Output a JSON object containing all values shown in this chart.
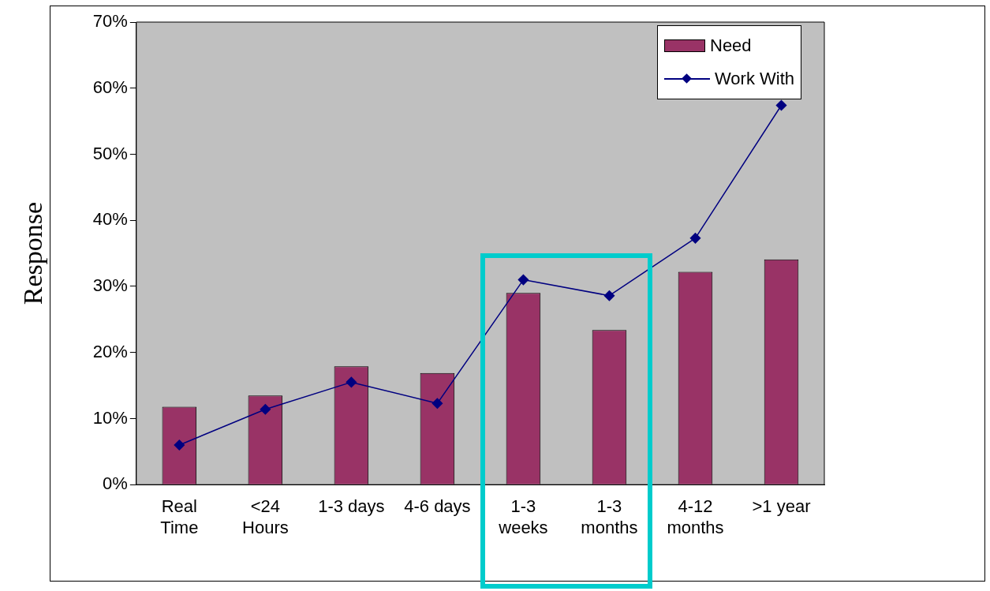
{
  "chart_data": {
    "type": "bar",
    "ylabel": "Response",
    "categories": [
      "Real\nTime",
      "<24\nHours",
      "1-3 days",
      "4-6 days",
      "1-3\nweeks",
      "1-3\nmonths",
      "4-12\nmonths",
      ">1 year"
    ],
    "series": [
      {
        "name": "Need",
        "color": "#993366",
        "values": [
          11.8,
          13.5,
          17.9,
          16.9,
          29,
          23.4,
          32.2,
          34.1
        ]
      },
      {
        "name": "Work With",
        "type": "line",
        "color": "#000080",
        "marker": "diamond",
        "values": [
          6,
          11.4,
          15.5,
          12.3,
          31,
          28.6,
          37.3,
          57.4
        ]
      }
    ],
    "ylim": [
      0,
      70
    ],
    "yticks": [
      {
        "value": 0,
        "label": "0%"
      },
      {
        "value": 10,
        "label": "10%"
      },
      {
        "value": 20,
        "label": "20%"
      },
      {
        "value": 30,
        "label": "30%"
      },
      {
        "value": 40,
        "label": "40%"
      },
      {
        "value": 50,
        "label": "50%"
      },
      {
        "value": 60,
        "label": "60%"
      },
      {
        "value": 70,
        "label": "70%"
      }
    ],
    "grid": false,
    "legend": "top right"
  }
}
